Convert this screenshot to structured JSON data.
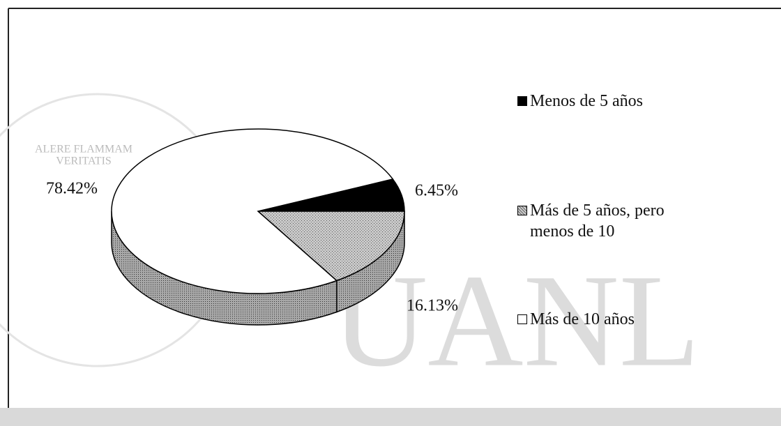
{
  "chart_data": {
    "type": "pie3d",
    "categories": [
      "Menos de 5 años",
      "Más de 5 años, pero menos de 10",
      "Más de 10 años"
    ],
    "values": [
      6.45,
      16.13,
      78.42
    ],
    "value_labels": [
      "6.45%",
      "16.13%",
      "78.42%"
    ],
    "colors": [
      "#000000",
      "#b8b8b8",
      "#ffffff"
    ],
    "legend": "right"
  },
  "watermark": {
    "text": "UANL",
    "motto": [
      "ALERE FLAMMAM",
      "VERITATIS"
    ]
  }
}
